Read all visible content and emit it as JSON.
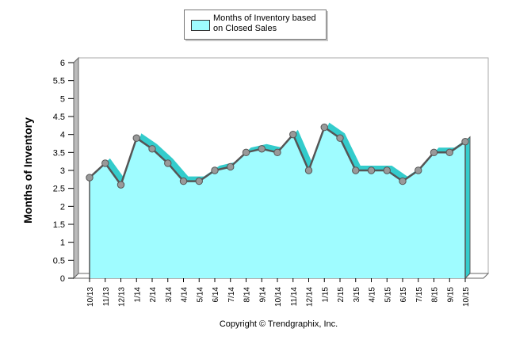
{
  "chart_data": {
    "type": "area",
    "title": "",
    "legend": {
      "label": "Months of Inventory based on Closed Sales",
      "position": "top"
    },
    "xlabel": "",
    "ylabel": "Months of Inventory",
    "ylim": [
      0,
      6
    ],
    "yticks": [
      0,
      0.5,
      1,
      1.5,
      2,
      2.5,
      3,
      3.5,
      4,
      4.5,
      5,
      5.5,
      6
    ],
    "ytick_labels": [
      "0",
      "0.5",
      "1",
      "1.5",
      "2",
      "2.5",
      "3",
      "3.5",
      "4",
      "4.5",
      "5",
      "5.5",
      "6"
    ],
    "categories": [
      "10/13",
      "11/13",
      "12/13",
      "1/14",
      "2/14",
      "3/14",
      "4/14",
      "5/14",
      "6/14",
      "7/14",
      "8/14",
      "9/14",
      "10/14",
      "11/14",
      "12/14",
      "1/15",
      "2/15",
      "3/15",
      "4/15",
      "5/15",
      "6/15",
      "7/15",
      "8/15",
      "9/15",
      "10/15"
    ],
    "series": [
      {
        "name": "Months of Inventory based on Closed Sales",
        "values": [
          2.8,
          3.2,
          2.6,
          3.9,
          3.6,
          3.2,
          2.7,
          2.7,
          3.0,
          3.1,
          3.5,
          3.6,
          3.5,
          4.0,
          3.0,
          4.2,
          3.9,
          3.0,
          3.0,
          3.0,
          2.7,
          3.0,
          3.5,
          3.5,
          3.8
        ]
      }
    ],
    "grid": false
  },
  "colors": {
    "area_fill": "#9ffcff",
    "area_shadow": "#33cccc",
    "line": "#555555",
    "marker": "#999999",
    "frame": "#aaaaaa",
    "wall": "#bbbbbb"
  },
  "footer": {
    "copyright": "Copyright © Trendgraphix, Inc."
  }
}
